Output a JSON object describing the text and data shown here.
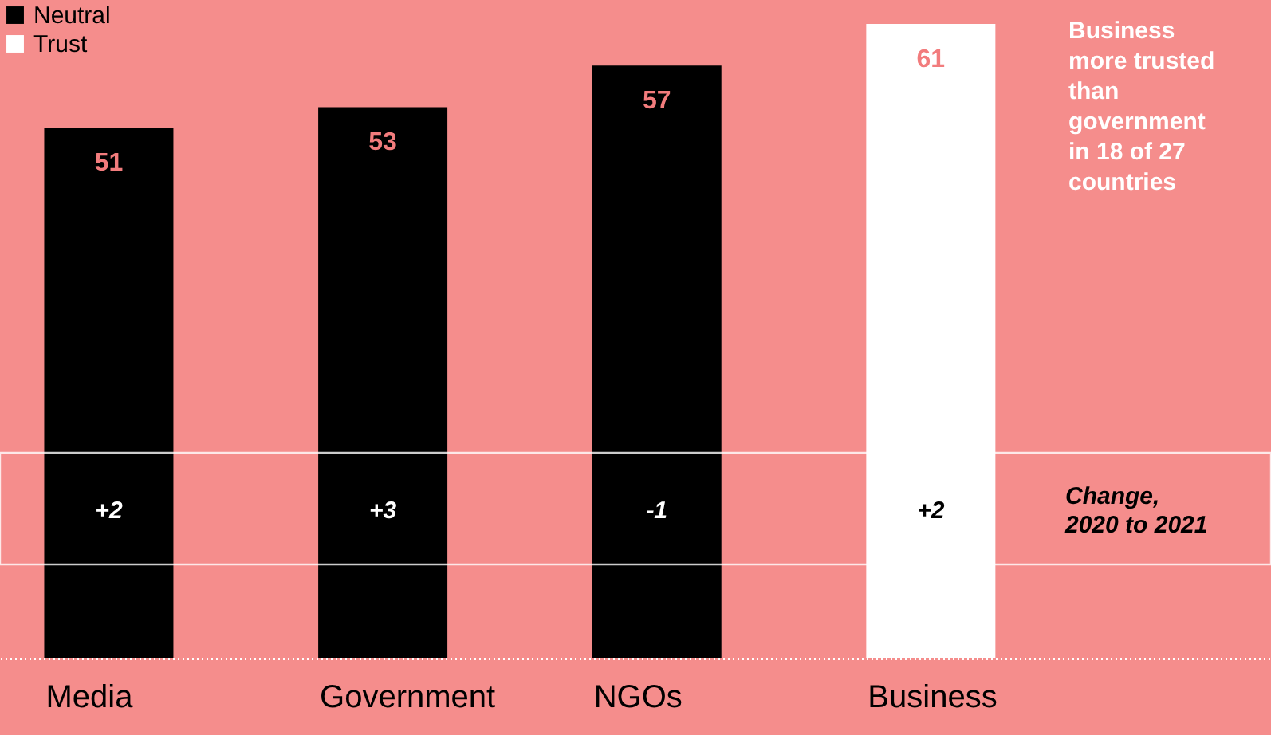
{
  "chart_data": {
    "type": "bar",
    "categories": [
      "Media",
      "Government",
      "NGOs",
      "Business"
    ],
    "series": [
      {
        "name": "Neutral",
        "color": "#000000",
        "values": [
          51,
          53,
          57,
          null
        ]
      },
      {
        "name": "Trust",
        "color": "#ffffff",
        "values": [
          null,
          null,
          null,
          61
        ]
      }
    ],
    "data_labels": true,
    "legend": "top left",
    "grid": false,
    "annotations": [
      "Business more trusted than government in 18 of 27 countries",
      "Change, 2020 to 2021",
      "+2",
      "+3",
      "-1",
      "+2"
    ]
  }
}
